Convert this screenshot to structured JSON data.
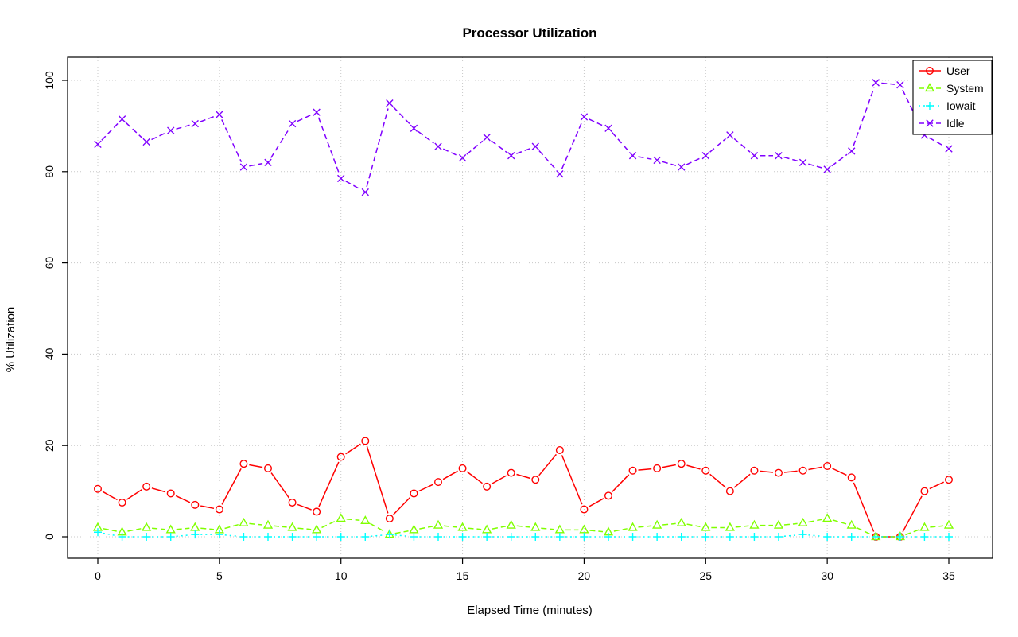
{
  "chart_data": {
    "type": "line",
    "title": "Processor Utilization",
    "xlabel": "Elapsed Time (minutes)",
    "ylabel": "% Utilization",
    "xlim": [
      0,
      35
    ],
    "ylim": [
      0,
      100
    ],
    "x_ticks": [
      0,
      5,
      10,
      15,
      20,
      25,
      30,
      35
    ],
    "y_ticks": [
      0,
      20,
      40,
      60,
      80,
      100
    ],
    "grid": true,
    "legend_position": "top-right",
    "x": [
      0,
      1,
      2,
      3,
      4,
      5,
      6,
      7,
      8,
      9,
      10,
      11,
      12,
      13,
      14,
      15,
      16,
      17,
      18,
      19,
      20,
      21,
      22,
      23,
      24,
      25,
      26,
      27,
      28,
      29,
      30,
      31,
      32,
      33,
      34,
      35
    ],
    "series": [
      {
        "name": "User",
        "color": "#FF0000",
        "marker": "circle",
        "line": "solid",
        "values": [
          10.5,
          7.5,
          11,
          9.5,
          7,
          6,
          16,
          15,
          7.5,
          5.5,
          17.5,
          21,
          4,
          9.5,
          12,
          15,
          11,
          14,
          12.5,
          19,
          6,
          9,
          14.5,
          15,
          16,
          14.5,
          10,
          14.5,
          14,
          14.5,
          15.5,
          13,
          0,
          0,
          10,
          12.5
        ]
      },
      {
        "name": "System",
        "color": "#80FF00",
        "marker": "triangle",
        "line": "dashed",
        "values": [
          2,
          1,
          2,
          1.5,
          2,
          1.5,
          3,
          2.5,
          2,
          1.5,
          4,
          3.5,
          0.5,
          1.5,
          2.5,
          2,
          1.5,
          2.5,
          2,
          1.5,
          1.5,
          1,
          2,
          2.5,
          3,
          2,
          2,
          2.5,
          2.5,
          3,
          4,
          2.5,
          0,
          0,
          2,
          2.5
        ]
      },
      {
        "name": "Iowait",
        "color": "#00FFFF",
        "marker": "plus",
        "line": "dotted",
        "values": [
          1,
          0,
          0,
          0,
          0.5,
          0.5,
          0,
          0,
          0,
          0,
          0,
          0,
          0.5,
          0,
          0,
          0,
          0,
          0,
          0,
          0,
          0,
          0,
          0,
          0,
          0,
          0,
          0,
          0,
          0,
          0.5,
          0,
          0,
          0,
          0,
          0,
          0
        ]
      },
      {
        "name": "Idle",
        "color": "#8000FF",
        "marker": "x",
        "line": "dashed",
        "values": [
          86,
          91.5,
          86.5,
          89,
          90.5,
          92.5,
          81,
          82,
          90.5,
          93,
          78.5,
          75.5,
          95,
          89.5,
          85.5,
          83,
          87.5,
          83.5,
          85.5,
          79.5,
          92,
          89.5,
          83.5,
          82.5,
          81,
          83.5,
          88,
          83.5,
          83.5,
          82,
          80.5,
          84.5,
          99.5,
          99,
          88,
          85
        ]
      }
    ],
    "colors": {
      "grid": "#C8C8C8",
      "frame": "#000000",
      "background": "#FFFFFF"
    }
  }
}
